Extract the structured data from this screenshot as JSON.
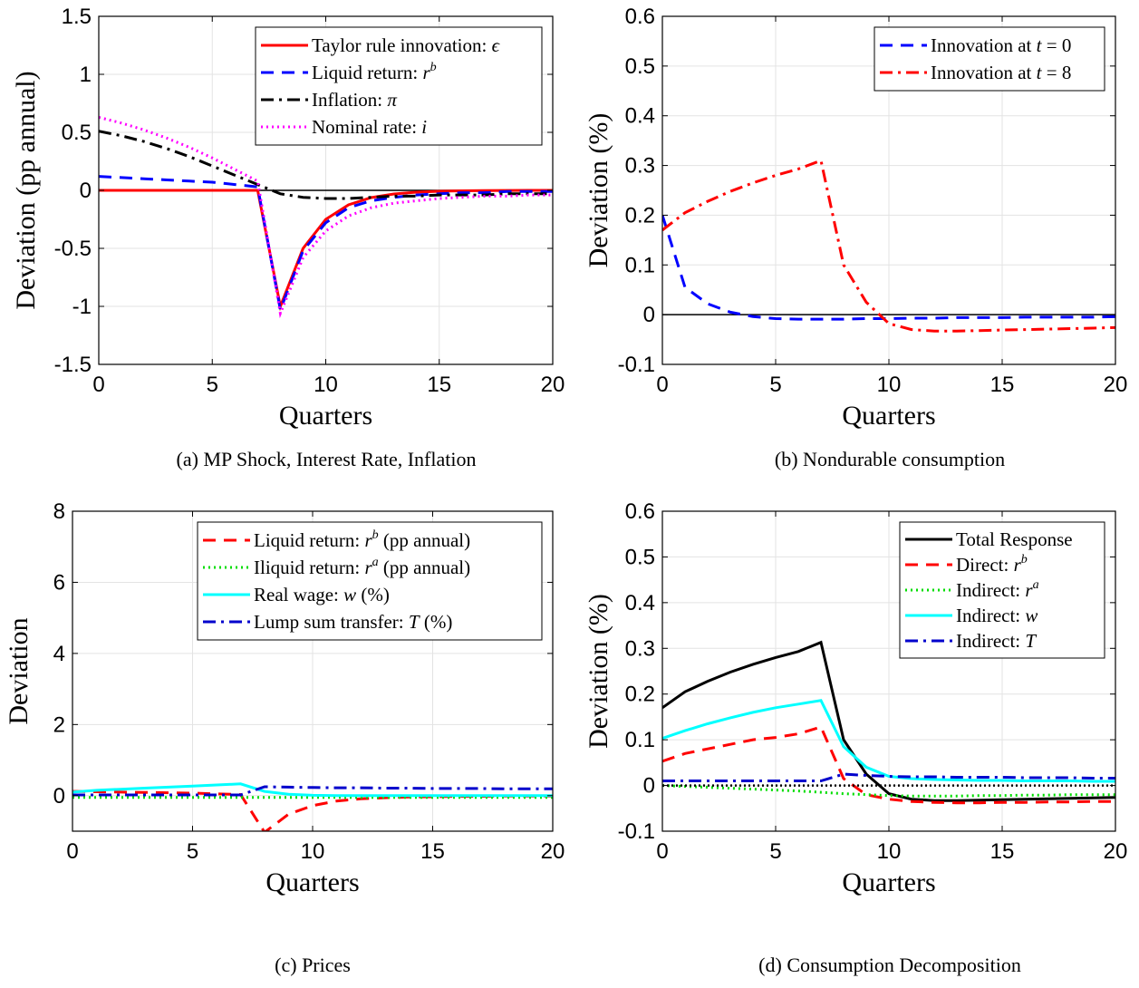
{
  "chart_data": [
    {
      "id": "a",
      "type": "line",
      "caption": "(a) MP Shock, Interest Rate, Inflation",
      "xlabel": "Quarters",
      "ylabel": "Deviation (pp annual)",
      "xlim": [
        0,
        20
      ],
      "ylim": [
        -1.5,
        1.5
      ],
      "xticks": [
        0,
        5,
        10,
        15,
        20
      ],
      "xtick_labels": [
        "0",
        "5",
        "10",
        "15",
        "20"
      ],
      "yticks": [
        -1.5,
        -1,
        -0.5,
        0,
        0.5,
        1,
        1.5
      ],
      "ytick_labels": [
        "-1.5",
        "-1",
        "-0.5",
        "0",
        "0.5",
        "1",
        "1.5"
      ],
      "grid": true,
      "legend_position": "top-right",
      "zero_line": true,
      "series": [
        {
          "label_text": "Taylor rule innovation: ",
          "label_math": "ϵ",
          "label_sup": "",
          "color": "#ff0000",
          "dash": "solid",
          "x": [
            0,
            1,
            2,
            3,
            4,
            5,
            6,
            7,
            8,
            9,
            10,
            11,
            12,
            13,
            14,
            15,
            16,
            17,
            18,
            19,
            20
          ],
          "y": [
            0,
            0,
            0,
            0,
            0,
            0,
            0,
            0,
            -1,
            -0.5,
            -0.25,
            -0.125,
            -0.0625,
            -0.031,
            -0.016,
            -0.008,
            -0.004,
            -0.002,
            -0.001,
            0,
            0
          ]
        },
        {
          "label_text": "Liquid return: ",
          "label_math": "r",
          "label_sup": "b",
          "color": "#0000ff",
          "dash": "dashed",
          "x": [
            0,
            1,
            2,
            3,
            4,
            5,
            6,
            7,
            8,
            9,
            10,
            11,
            12,
            13,
            14,
            15,
            16,
            17,
            18,
            19,
            20
          ],
          "y": [
            0.12,
            0.11,
            0.1,
            0.09,
            0.08,
            0.07,
            0.05,
            0.03,
            -1.03,
            -0.52,
            -0.28,
            -0.15,
            -0.09,
            -0.06,
            -0.04,
            -0.03,
            -0.02,
            -0.02,
            -0.01,
            -0.01,
            -0.01
          ]
        },
        {
          "label_text": "Inflation: ",
          "label_math": "π",
          "label_sup": "",
          "color": "#000000",
          "dash": "dashdot",
          "x": [
            0,
            1,
            2,
            3,
            4,
            5,
            6,
            7,
            8,
            9,
            10,
            11,
            12,
            13,
            14,
            15,
            16,
            17,
            18,
            19,
            20
          ],
          "y": [
            0.51,
            0.47,
            0.42,
            0.36,
            0.29,
            0.21,
            0.13,
            0.05,
            -0.03,
            -0.06,
            -0.07,
            -0.07,
            -0.06,
            -0.05,
            -0.05,
            -0.04,
            -0.04,
            -0.04,
            -0.03,
            -0.03,
            -0.03
          ]
        },
        {
          "label_text": "Nominal rate: ",
          "label_math": "i",
          "label_sup": "",
          "color": "#ff00ff",
          "dash": "dotted",
          "x": [
            0,
            1,
            2,
            3,
            4,
            5,
            6,
            7,
            8,
            9,
            10,
            11,
            12,
            13,
            14,
            15,
            16,
            17,
            18,
            19,
            20
          ],
          "y": [
            0.63,
            0.58,
            0.52,
            0.45,
            0.37,
            0.28,
            0.18,
            0.08,
            -1.06,
            -0.58,
            -0.35,
            -0.22,
            -0.15,
            -0.11,
            -0.09,
            -0.07,
            -0.06,
            -0.05,
            -0.05,
            -0.04,
            -0.04
          ]
        }
      ]
    },
    {
      "id": "b",
      "type": "line",
      "caption": "(b) Nondurable consumption",
      "xlabel": "Quarters",
      "ylabel": "Deviation (%)",
      "xlim": [
        0,
        20
      ],
      "ylim": [
        -0.1,
        0.6
      ],
      "xticks": [
        0,
        5,
        10,
        15,
        20
      ],
      "xtick_labels": [
        "0",
        "5",
        "10",
        "15",
        "20"
      ],
      "yticks": [
        -0.1,
        0,
        0.1,
        0.2,
        0.3,
        0.4,
        0.5,
        0.6
      ],
      "ytick_labels": [
        "-0.1",
        "0",
        "0.1",
        "0.2",
        "0.3",
        "0.4",
        "0.5",
        "0.6"
      ],
      "grid": true,
      "legend_position": "top-right",
      "zero_line": true,
      "series": [
        {
          "label_text": "Innovation at ",
          "label_math": "t",
          "label_sup": "",
          "label_suffix": " = 0",
          "color": "#0000ff",
          "dash": "dashed",
          "x": [
            0,
            1,
            2,
            3,
            4,
            5,
            6,
            7,
            8,
            9,
            10,
            11,
            12,
            13,
            14,
            15,
            16,
            17,
            18,
            19,
            20
          ],
          "y": [
            0.2,
            0.055,
            0.022,
            0.005,
            -0.004,
            -0.008,
            -0.009,
            -0.009,
            -0.009,
            -0.008,
            -0.008,
            -0.007,
            -0.007,
            -0.006,
            -0.006,
            -0.006,
            -0.005,
            -0.005,
            -0.005,
            -0.005,
            -0.004
          ]
        },
        {
          "label_text": "Innovation at ",
          "label_math": "t",
          "label_sup": "",
          "label_suffix": " = 8",
          "color": "#ff0000",
          "dash": "dashdot",
          "x": [
            0,
            1,
            2,
            3,
            4,
            5,
            6,
            7,
            8,
            9,
            10,
            11,
            12,
            13,
            14,
            15,
            16,
            17,
            18,
            19,
            20
          ],
          "y": [
            0.17,
            0.205,
            0.228,
            0.248,
            0.265,
            0.28,
            0.293,
            0.31,
            0.1,
            0.025,
            -0.018,
            -0.03,
            -0.033,
            -0.033,
            -0.032,
            -0.031,
            -0.03,
            -0.029,
            -0.028,
            -0.027,
            -0.026
          ]
        }
      ]
    },
    {
      "id": "c",
      "type": "line",
      "caption": "(c) Prices",
      "xlabel": "Quarters",
      "ylabel": "Deviation",
      "xlim": [
        0,
        20
      ],
      "ylim": [
        -1,
        8
      ],
      "xticks": [
        0,
        5,
        10,
        15,
        20
      ],
      "xtick_labels": [
        "0",
        "5",
        "10",
        "15",
        "20"
      ],
      "yticks": [
        0,
        2,
        4,
        6,
        8
      ],
      "ytick_labels": [
        "0",
        "2",
        "4",
        "6",
        "8"
      ],
      "grid": true,
      "legend_position": "top-right",
      "zero_line": false,
      "series": [
        {
          "label_text": "Liquid return: ",
          "label_math": "r",
          "label_sup": "b",
          "label_suffix": " (pp annual)",
          "color": "#ff0000",
          "dash": "dashed",
          "x": [
            0,
            1,
            2,
            3,
            4,
            5,
            6,
            7,
            8,
            9,
            10,
            11,
            12,
            13,
            14,
            15,
            16,
            17,
            18,
            19,
            20
          ],
          "y": [
            0.12,
            0.11,
            0.1,
            0.09,
            0.08,
            0.07,
            0.05,
            0.03,
            -1.03,
            -0.52,
            -0.28,
            -0.15,
            -0.09,
            -0.06,
            -0.04,
            -0.03,
            -0.02,
            -0.02,
            -0.01,
            -0.01,
            -0.01
          ]
        },
        {
          "label_text": "Iliquid return: ",
          "label_math": "r",
          "label_sup": "a",
          "label_suffix": " (pp annual)",
          "color": "#00dd00",
          "dash": "dotted",
          "x": [
            0,
            1,
            2,
            3,
            4,
            5,
            6,
            7,
            8,
            9,
            10,
            11,
            12,
            13,
            14,
            15,
            16,
            17,
            18,
            19,
            20
          ],
          "y": [
            -0.05,
            -0.05,
            -0.05,
            -0.05,
            -0.05,
            -0.05,
            -0.05,
            -0.05,
            -0.05,
            -0.05,
            -0.05,
            -0.05,
            -0.05,
            -0.05,
            -0.05,
            -0.05,
            -0.05,
            -0.05,
            -0.05,
            -0.05,
            -0.05
          ]
        },
        {
          "label_text": "Real wage: ",
          "label_math": "w",
          "label_sup": "",
          "label_suffix": " (%)",
          "color": "#00ffff",
          "dash": "solid",
          "x": [
            0,
            1,
            2,
            3,
            4,
            5,
            6,
            7,
            8,
            9,
            10,
            11,
            12,
            13,
            14,
            15,
            16,
            17,
            18,
            19,
            20
          ],
          "y": [
            0.1,
            0.15,
            0.18,
            0.21,
            0.24,
            0.27,
            0.3,
            0.33,
            0.12,
            0.04,
            0.01,
            0,
            0,
            0,
            0,
            0,
            0,
            0,
            0,
            0,
            0
          ]
        },
        {
          "label_text": "Lump sum transfer: ",
          "label_math": "T",
          "label_sup": "",
          "label_suffix": " (%)",
          "color": "#0000cc",
          "dash": "dashdot",
          "x": [
            0,
            1,
            2,
            3,
            4,
            5,
            6,
            7,
            8,
            9,
            10,
            11,
            12,
            13,
            14,
            15,
            16,
            17,
            18,
            19,
            20
          ],
          "y": [
            0.02,
            0.02,
            0.02,
            0.02,
            0.02,
            0.02,
            0.02,
            0.02,
            0.25,
            0.24,
            0.23,
            0.22,
            0.22,
            0.21,
            0.21,
            0.2,
            0.2,
            0.2,
            0.19,
            0.19,
            0.19
          ]
        }
      ]
    },
    {
      "id": "d",
      "type": "line",
      "caption": "(d) Consumption Decomposition",
      "xlabel": "Quarters",
      "ylabel": "Deviation (%)",
      "xlim": [
        0,
        20
      ],
      "ylim": [
        -0.1,
        0.6
      ],
      "xticks": [
        0,
        5,
        10,
        15,
        20
      ],
      "xtick_labels": [
        "0",
        "5",
        "10",
        "15",
        "20"
      ],
      "yticks": [
        -0.1,
        0,
        0.1,
        0.2,
        0.3,
        0.4,
        0.5,
        0.6
      ],
      "ytick_labels": [
        "-0.1",
        "0",
        "0.1",
        "0.2",
        "0.3",
        "0.4",
        "0.5",
        "0.6"
      ],
      "grid": true,
      "legend_position": "top-right",
      "zero_line": false,
      "series": [
        {
          "label_text": "Total Response",
          "label_math": "",
          "label_sup": "",
          "color": "#000000",
          "dash": "solid",
          "x": [
            0,
            1,
            2,
            3,
            4,
            5,
            6,
            7,
            8,
            9,
            10,
            11,
            12,
            13,
            14,
            15,
            16,
            17,
            18,
            19,
            20
          ],
          "y": [
            0.17,
            0.205,
            0.228,
            0.248,
            0.265,
            0.28,
            0.293,
            0.313,
            0.1,
            0.025,
            -0.018,
            -0.03,
            -0.033,
            -0.033,
            -0.032,
            -0.031,
            -0.03,
            -0.029,
            -0.028,
            -0.027,
            -0.026
          ]
        },
        {
          "label_text": "Direct: ",
          "label_math": "r",
          "label_sup": "b",
          "color": "#ff0000",
          "dash": "dashed",
          "x": [
            0,
            1,
            2,
            3,
            4,
            5,
            6,
            7,
            8,
            9,
            10,
            11,
            12,
            13,
            14,
            15,
            16,
            17,
            18,
            19,
            20
          ],
          "y": [
            0.053,
            0.07,
            0.08,
            0.09,
            0.1,
            0.105,
            0.113,
            0.128,
            0.015,
            -0.02,
            -0.03,
            -0.035,
            -0.037,
            -0.038,
            -0.038,
            -0.037,
            -0.037,
            -0.036,
            -0.036,
            -0.035,
            -0.035
          ]
        },
        {
          "label_text": "Indirect: ",
          "label_math": "r",
          "label_sup": "a",
          "color": "#00dd00",
          "dash": "dotted",
          "x": [
            0,
            1,
            2,
            3,
            4,
            5,
            6,
            7,
            8,
            9,
            10,
            11,
            12,
            13,
            14,
            15,
            16,
            17,
            18,
            19,
            20
          ],
          "y": [
            0,
            -0.002,
            -0.004,
            -0.006,
            -0.008,
            -0.01,
            -0.012,
            -0.015,
            -0.018,
            -0.02,
            -0.022,
            -0.023,
            -0.023,
            -0.023,
            -0.022,
            -0.022,
            -0.021,
            -0.021,
            -0.02,
            -0.02,
            -0.02
          ]
        },
        {
          "label_text": "Indirect: ",
          "label_math": "w",
          "label_sup": "",
          "color": "#00ffff",
          "dash": "solid",
          "x": [
            0,
            1,
            2,
            3,
            4,
            5,
            6,
            7,
            8,
            9,
            10,
            11,
            12,
            13,
            14,
            15,
            16,
            17,
            18,
            19,
            20
          ],
          "y": [
            0.103,
            0.12,
            0.135,
            0.148,
            0.16,
            0.17,
            0.178,
            0.186,
            0.085,
            0.04,
            0.02,
            0.015,
            0.013,
            0.012,
            0.011,
            0.011,
            0.01,
            0.01,
            0.01,
            0.009,
            0.009
          ]
        },
        {
          "label_text": "Indirect: ",
          "label_math": "T",
          "label_sup": "",
          "color": "#0000cc",
          "dash": "dashdot",
          "x": [
            0,
            1,
            2,
            3,
            4,
            5,
            6,
            7,
            8,
            9,
            10,
            11,
            12,
            13,
            14,
            15,
            16,
            17,
            18,
            19,
            20
          ],
          "y": [
            0.01,
            0.01,
            0.01,
            0.01,
            0.01,
            0.01,
            0.01,
            0.01,
            0.025,
            0.022,
            0.02,
            0.019,
            0.019,
            0.018,
            0.018,
            0.018,
            0.017,
            0.017,
            0.017,
            0.016,
            0.016
          ]
        },
        {
          "label_text": "",
          "label_math": "",
          "label_sup": "",
          "color": "#000000",
          "dash": "densedot",
          "legend": false,
          "x": [
            0,
            20
          ],
          "y": [
            0,
            0
          ]
        }
      ]
    }
  ]
}
